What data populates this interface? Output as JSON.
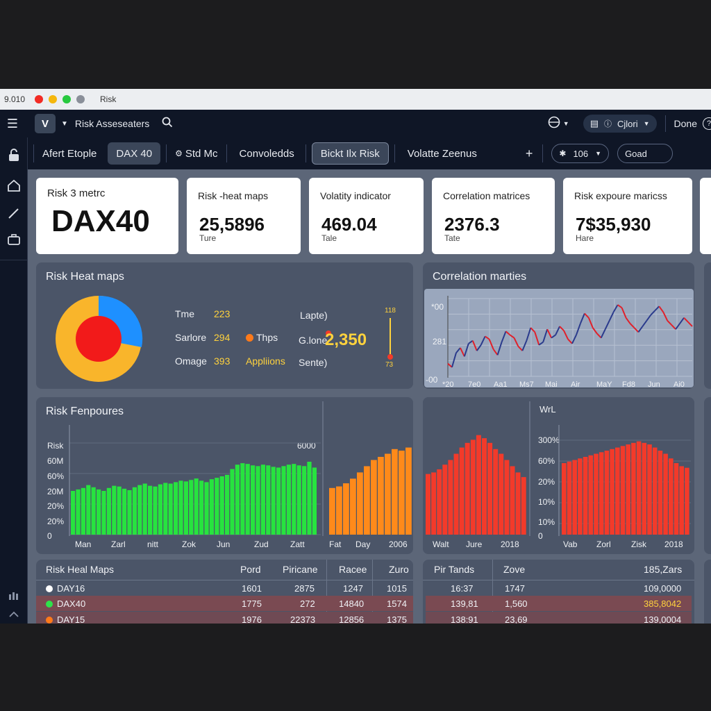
{
  "window": {
    "title_left": "9.010",
    "title": "Risk"
  },
  "toolbar": {
    "logo": "V",
    "app_name": "Risk Asseseaters",
    "client": "Cjlori",
    "done": "Done",
    "help": "?"
  },
  "tabs": [
    {
      "label": "Afert Etople"
    },
    {
      "label": "DAX 40"
    },
    {
      "label": "Std Mc"
    },
    {
      "label": "Convoledds"
    },
    {
      "label": "Bickt Ilx Risk"
    },
    {
      "label": "Volatte Zeenus"
    }
  ],
  "tab_pill": "106",
  "tab_input": "Goad",
  "cards": [
    {
      "label": "Risk 3 metrc",
      "value": "DAX40",
      "sub": ""
    },
    {
      "label": "Risk -heat maps",
      "value": "25,5896",
      "sub": "Ture"
    },
    {
      "label": "Volatity indicator",
      "value": "469.04",
      "sub": "Tale"
    },
    {
      "label": "Correlation matrices",
      "value": "2376.3",
      "sub": "Tate"
    },
    {
      "label": "Risk expoure maricss",
      "value": "7$35,930",
      "sub": "Hare"
    }
  ],
  "heat_panel": {
    "title": "Risk Heat maps",
    "rows": [
      {
        "label": "Tme",
        "value": "223"
      },
      {
        "label": "Sarlore",
        "value": "294"
      },
      {
        "label": "Omage",
        "value": "393"
      }
    ],
    "legend1": "Thps",
    "legend2": "Appliions",
    "right_labels": [
      "Lapte)",
      "G.lone",
      "Sente)"
    ],
    "big_value": "2,350",
    "gauge_top": "118",
    "gauge_bottom": "73",
    "colors": {
      "outer": "#f9b52b",
      "inner": "#f21a1a",
      "slice": "#1e90ff"
    }
  },
  "corr_panel": {
    "title": "Correlation marties",
    "y_labels": [
      "*00",
      "281",
      "-00"
    ],
    "x_labels": [
      "*20",
      "7e0",
      "Aa1",
      "Ms7",
      "Mai",
      "Air",
      "MaY",
      "Fd8",
      "Jun",
      "Ai0"
    ]
  },
  "exposure_panel": {
    "title": "Risk Fenpoures",
    "y_labels": [
      "Risk",
      "60M",
      "60%",
      "20M",
      "20%",
      "20%",
      "0"
    ],
    "x_labels": [
      "Man",
      "Zarl",
      "nitt",
      "Zok",
      "Jun",
      "Zud",
      "Zatt"
    ],
    "top_right": "6000",
    "x_labels_orange": [
      "Fat",
      "Day",
      "2006"
    ]
  },
  "wrl_panel": {
    "title": "WrL",
    "y_labels": [
      "300%",
      "60%",
      "20%",
      "10%",
      "10%",
      "0"
    ],
    "x_labels_left": [
      "Walt",
      "Jure",
      "2018"
    ],
    "x_labels_right": [
      "Vab",
      "Zorl",
      "Zisk",
      "2018"
    ]
  },
  "table_left": {
    "headers": [
      "Risk Heal Maps",
      "Pord",
      "Piricane",
      "Racee",
      "Zuro"
    ],
    "rows": [
      {
        "name": "DAY16",
        "dot": "#ffffff",
        "c1": "1601",
        "c2": "2875",
        "c3": "1247",
        "c4": "1015"
      },
      {
        "name": "DAX40",
        "dot": "#2ee24a",
        "c1": "1775",
        "c2": "272",
        "c3": "14840",
        "c4": "1574"
      },
      {
        "name": "DAY15",
        "dot": "#ff7a1a",
        "c1": "1976",
        "c2": "22373",
        "c3": "12856",
        "c4": "1375"
      }
    ]
  },
  "table_right": {
    "headers": [
      "Pir Tands",
      "Zove",
      "185,Zars"
    ],
    "rows": [
      {
        "c1": "16:37",
        "c2": "1747",
        "c3": "109,0000"
      },
      {
        "c1": "139,81",
        "c2": "1,560",
        "c3": "385,8042"
      },
      {
        "c1": "138:91",
        "c2": "23,69",
        "c3": "139,0004"
      }
    ]
  },
  "chart_data": [
    {
      "type": "line",
      "title": "Correlation marties",
      "series": [
        {
          "values": [
            40,
            35,
            55,
            62,
            50,
            68,
            72,
            58,
            66,
            78,
            74,
            60,
            52,
            70,
            85,
            80,
            76,
            64,
            58,
            72,
            90,
            84,
            66,
            70,
            88,
            76,
            80,
            92,
            86,
            74,
            68,
            80,
            96,
            110,
            104,
            90,
            82,
            76,
            88,
            100,
            112,
            122,
            118,
            104,
            96,
            90,
            84,
            92,
            100,
            108,
            114,
            120,
            112,
            100,
            94,
            88,
            96,
            104,
            98,
            92
          ]
        }
      ]
    },
    {
      "type": "bar",
      "title": "Risk Fenpoures",
      "series": [
        {
          "name": "green",
          "values": [
            60,
            62,
            64,
            68,
            65,
            62,
            60,
            64,
            67,
            66,
            63,
            61,
            65,
            68,
            70,
            67,
            66,
            69,
            71,
            70,
            72,
            74,
            73,
            75,
            77,
            74,
            72,
            76,
            78,
            80,
            82,
            90,
            96,
            98,
            97,
            95,
            94,
            96,
            95,
            93,
            92,
            94,
            96,
            97,
            95,
            94,
            100,
            92
          ]
        }
      ]
    },
    {
      "type": "bar",
      "series": [
        {
          "name": "orange",
          "values": [
            60,
            62,
            66,
            72,
            80,
            88,
            96,
            100,
            104,
            110,
            108,
            112
          ]
        }
      ]
    },
    {
      "type": "bar",
      "series": [
        {
          "name": "red-left",
          "values": [
            78,
            80,
            84,
            90,
            96,
            104,
            112,
            118,
            122,
            128,
            124,
            118,
            110,
            104,
            96,
            88,
            80,
            74
          ]
        }
      ]
    },
    {
      "type": "bar",
      "series": [
        {
          "name": "red-right",
          "values": [
            92,
            94,
            96,
            98,
            100,
            102,
            104,
            106,
            108,
            110,
            112,
            114,
            116,
            118,
            120,
            118,
            116,
            112,
            108,
            104,
            98,
            92,
            88,
            86
          ]
        }
      ]
    }
  ]
}
